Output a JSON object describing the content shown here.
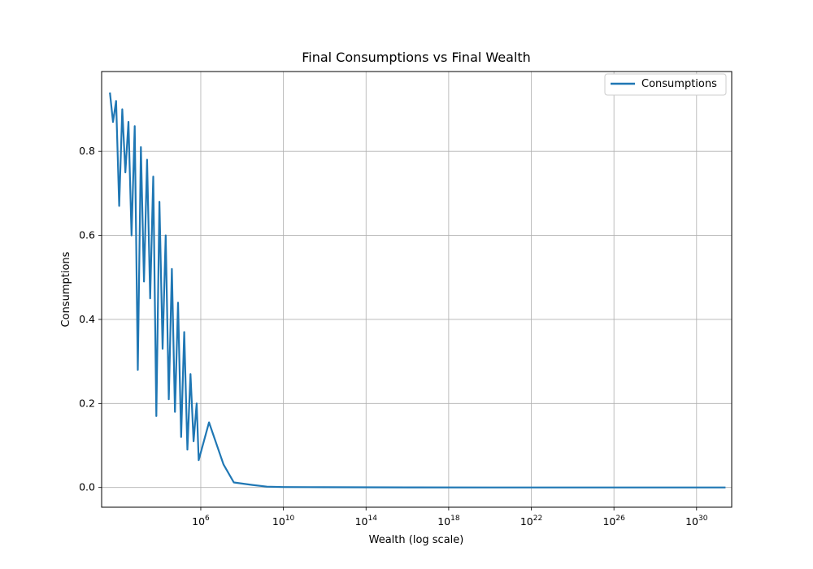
{
  "chart_data": {
    "type": "line",
    "title": "Final Consumptions vs Final Wealth",
    "xlabel": "Wealth (log scale)",
    "ylabel": "Consumptions",
    "xscale": "log",
    "xlim_log10": [
      1.2,
      31.7
    ],
    "ylim": [
      -0.047,
      0.99
    ],
    "x_ticks": [
      {
        "base": "10",
        "exp": "6",
        "log10": 6
      },
      {
        "base": "10",
        "exp": "10",
        "log10": 10
      },
      {
        "base": "10",
        "exp": "14",
        "log10": 14
      },
      {
        "base": "10",
        "exp": "18",
        "log10": 18
      },
      {
        "base": "10",
        "exp": "22",
        "log10": 22
      },
      {
        "base": "10",
        "exp": "26",
        "log10": 26
      },
      {
        "base": "10",
        "exp": "30",
        "log10": 30
      }
    ],
    "y_ticks": [
      "0.0",
      "0.2",
      "0.4",
      "0.6",
      "0.8"
    ],
    "grid": true,
    "legend_position": "top-right",
    "series": [
      {
        "name": "Consumptions",
        "color": "#1f77b4",
        "x_log10": [
          1.6,
          1.75,
          1.9,
          2.05,
          2.2,
          2.35,
          2.5,
          2.65,
          2.8,
          2.95,
          3.1,
          3.25,
          3.4,
          3.55,
          3.7,
          3.85,
          4.0,
          4.15,
          4.3,
          4.45,
          4.6,
          4.75,
          4.9,
          5.05,
          5.2,
          5.35,
          5.5,
          5.65,
          5.8,
          5.9,
          6.4,
          7.1,
          7.6,
          8.5,
          9.2,
          10.0,
          12.0,
          16.0,
          20.0,
          24.0,
          28.0,
          31.4
        ],
        "y": [
          0.94,
          0.87,
          0.92,
          0.67,
          0.9,
          0.75,
          0.87,
          0.6,
          0.86,
          0.28,
          0.81,
          0.49,
          0.78,
          0.45,
          0.74,
          0.17,
          0.68,
          0.33,
          0.6,
          0.21,
          0.52,
          0.18,
          0.44,
          0.12,
          0.37,
          0.09,
          0.27,
          0.11,
          0.2,
          0.065,
          0.155,
          0.055,
          0.012,
          0.006,
          0.002,
          0.001,
          0.0005,
          0.0002,
          0.0001,
          0.0001,
          0.0001,
          0.0001
        ]
      }
    ]
  }
}
